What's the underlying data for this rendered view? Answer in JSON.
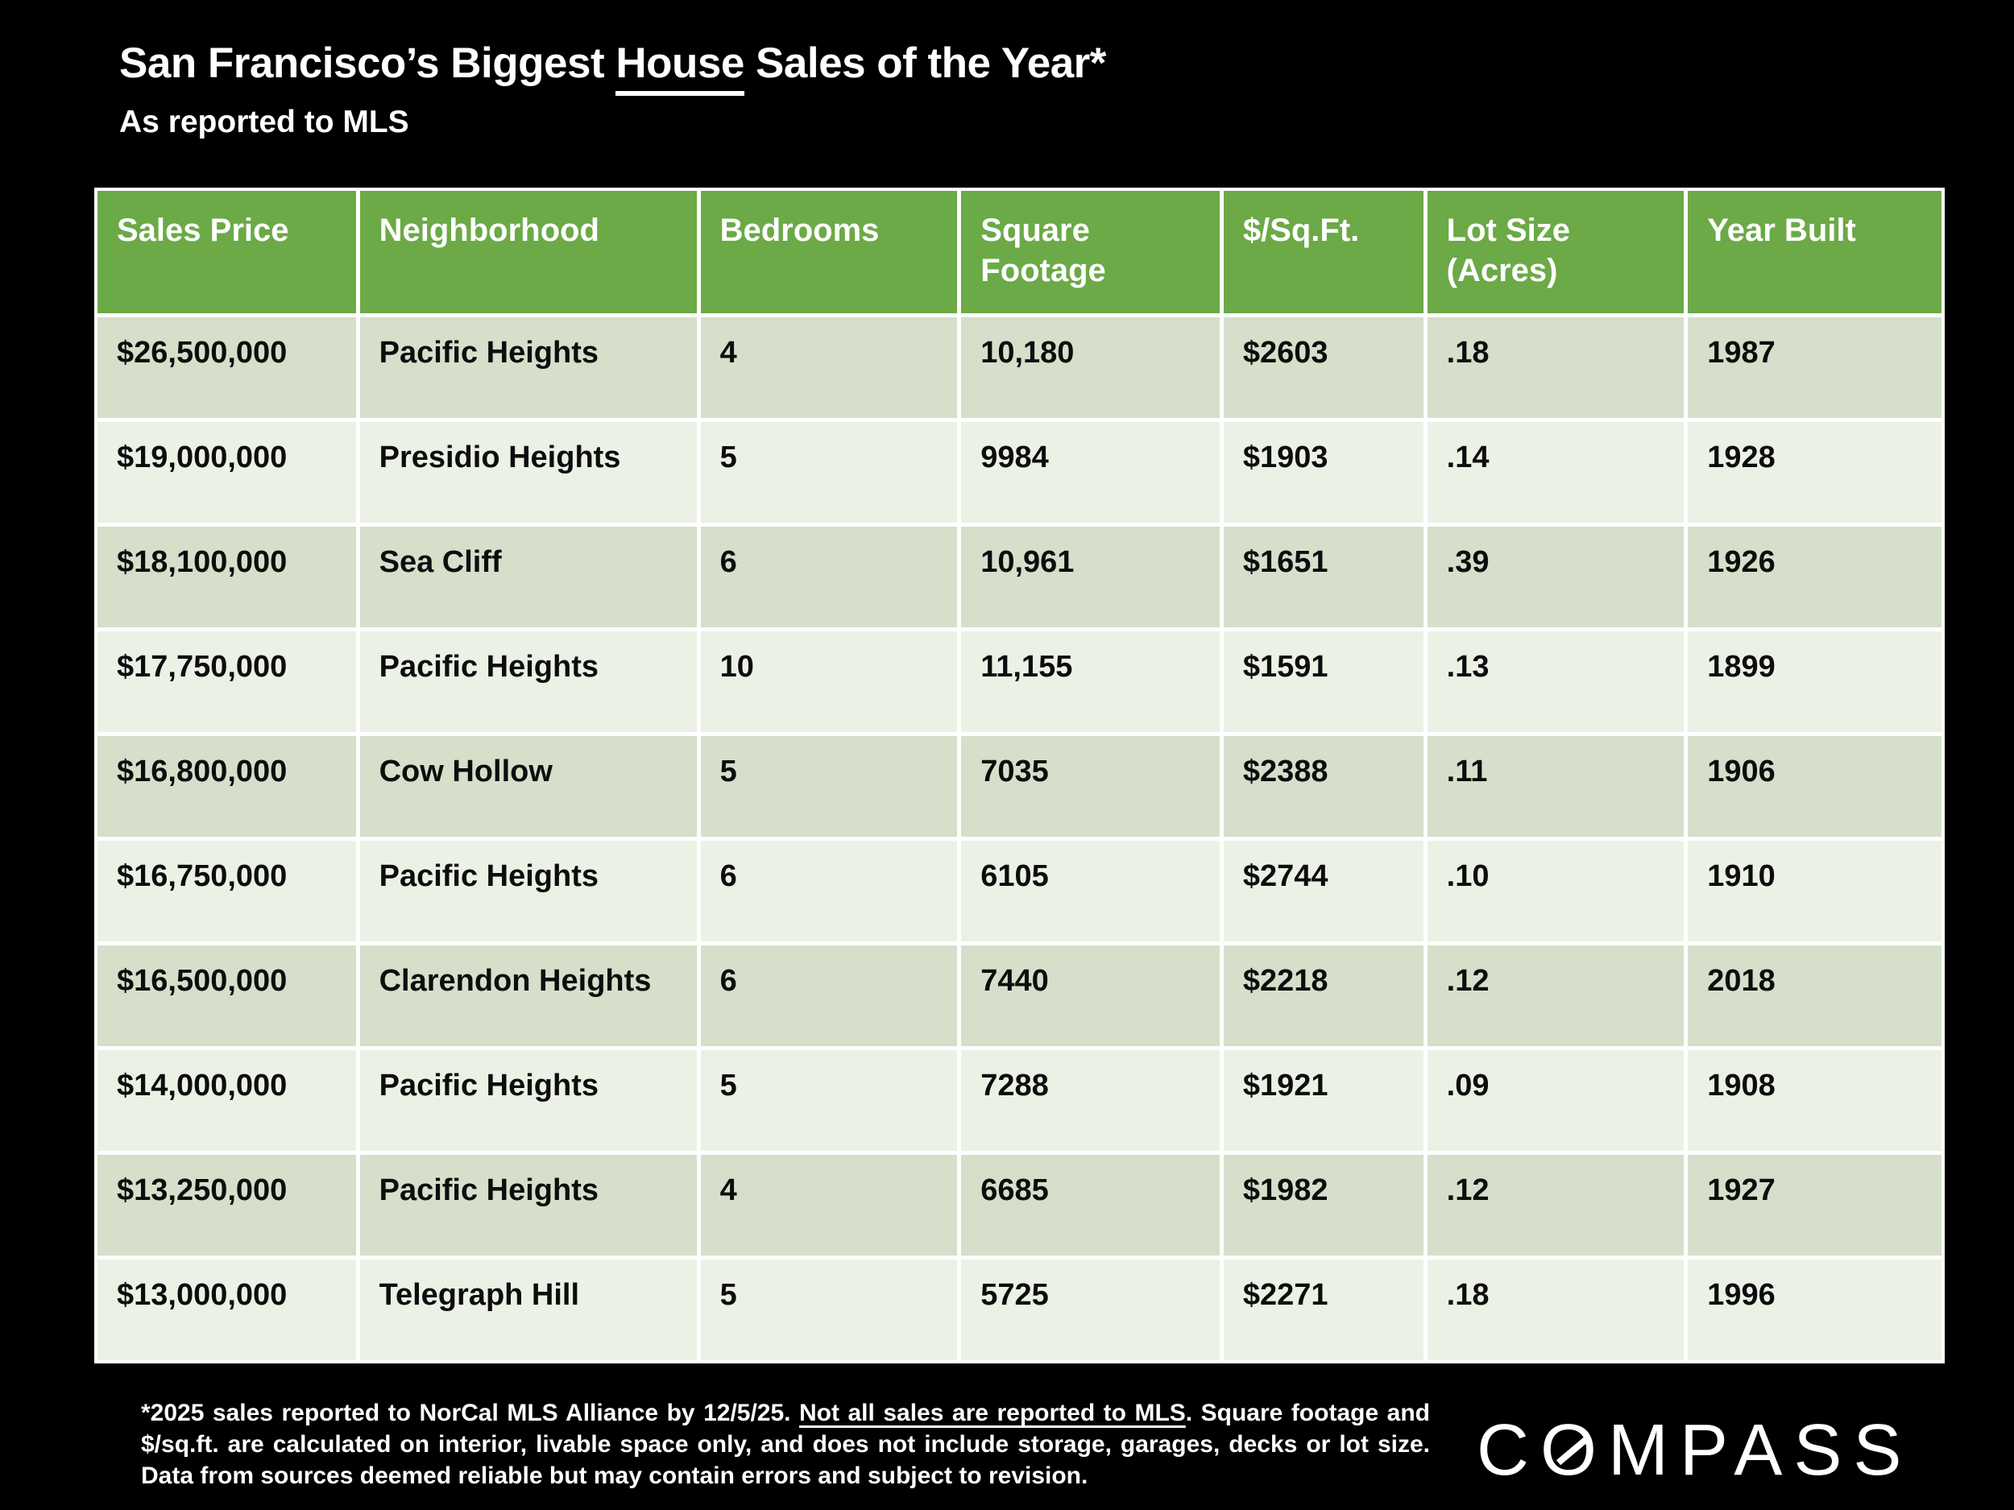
{
  "title": {
    "part1": "San Francisco’s Biggest ",
    "underlined": "House",
    "part2": " Sales of the Year*"
  },
  "subtitle": "As reported to MLS",
  "chart_data": {
    "type": "table",
    "title": "San Francisco’s Biggest House Sales of the Year*",
    "subtitle": "As reported to MLS",
    "columns": [
      "Sales Price",
      "Neighborhood",
      "Bedrooms",
      "Square Footage",
      "$/Sq.Ft.",
      "Lot Size (Acres)",
      "Year Built"
    ],
    "rows": [
      [
        "$26,500,000",
        "Pacific Heights",
        "4",
        "10,180",
        "$2603",
        ".18",
        "1987"
      ],
      [
        "$19,000,000",
        "Presidio Heights",
        "5",
        "9984",
        "$1903",
        ".14",
        "1928"
      ],
      [
        "$18,100,000",
        "Sea Cliff",
        "6",
        "10,961",
        "$1651",
        ".39",
        "1926"
      ],
      [
        "$17,750,000",
        "Pacific Heights",
        "10",
        "11,155",
        "$1591",
        ".13",
        "1899"
      ],
      [
        "$16,800,000",
        "Cow Hollow",
        "5",
        "7035",
        "$2388",
        ".11",
        "1906"
      ],
      [
        "$16,750,000",
        "Pacific Heights",
        "6",
        "6105",
        "$2744",
        ".10",
        "1910"
      ],
      [
        "$16,500,000",
        "Clarendon Heights",
        "6",
        "7440",
        "$2218",
        ".12",
        "2018"
      ],
      [
        "$14,000,000",
        "Pacific Heights",
        "5",
        "7288",
        "$1921",
        ".09",
        "1908"
      ],
      [
        "$13,250,000",
        "Pacific Heights",
        "4",
        "6685",
        "$1982",
        ".12",
        "1927"
      ],
      [
        "$13,000,000",
        "Telegraph Hill",
        "5",
        "5725",
        "$2271",
        ".18",
        "1996"
      ]
    ]
  },
  "footnote": {
    "part1": "*2025 sales reported to NorCal MLS Alliance by 12/5/25. ",
    "underlined": "Not all sales are reported to MLS",
    "part2": ". Square footage and $/sq.ft. are calculated on interior, livable space only, and does not include storage, garages, decks or lot size. Data from sources deemed reliable but may contain errors and subject to revision."
  },
  "brand": {
    "wordmark_left": "C",
    "wordmark_o": "O",
    "wordmark_right": "MPASS"
  },
  "colors": {
    "background": "#000000",
    "header_green": "#6BAA46",
    "row_odd": "#D5DFCA",
    "row_even": "#ECF1E6",
    "title_text": "#FFFFFF",
    "cell_text": "#0D0D0D"
  }
}
